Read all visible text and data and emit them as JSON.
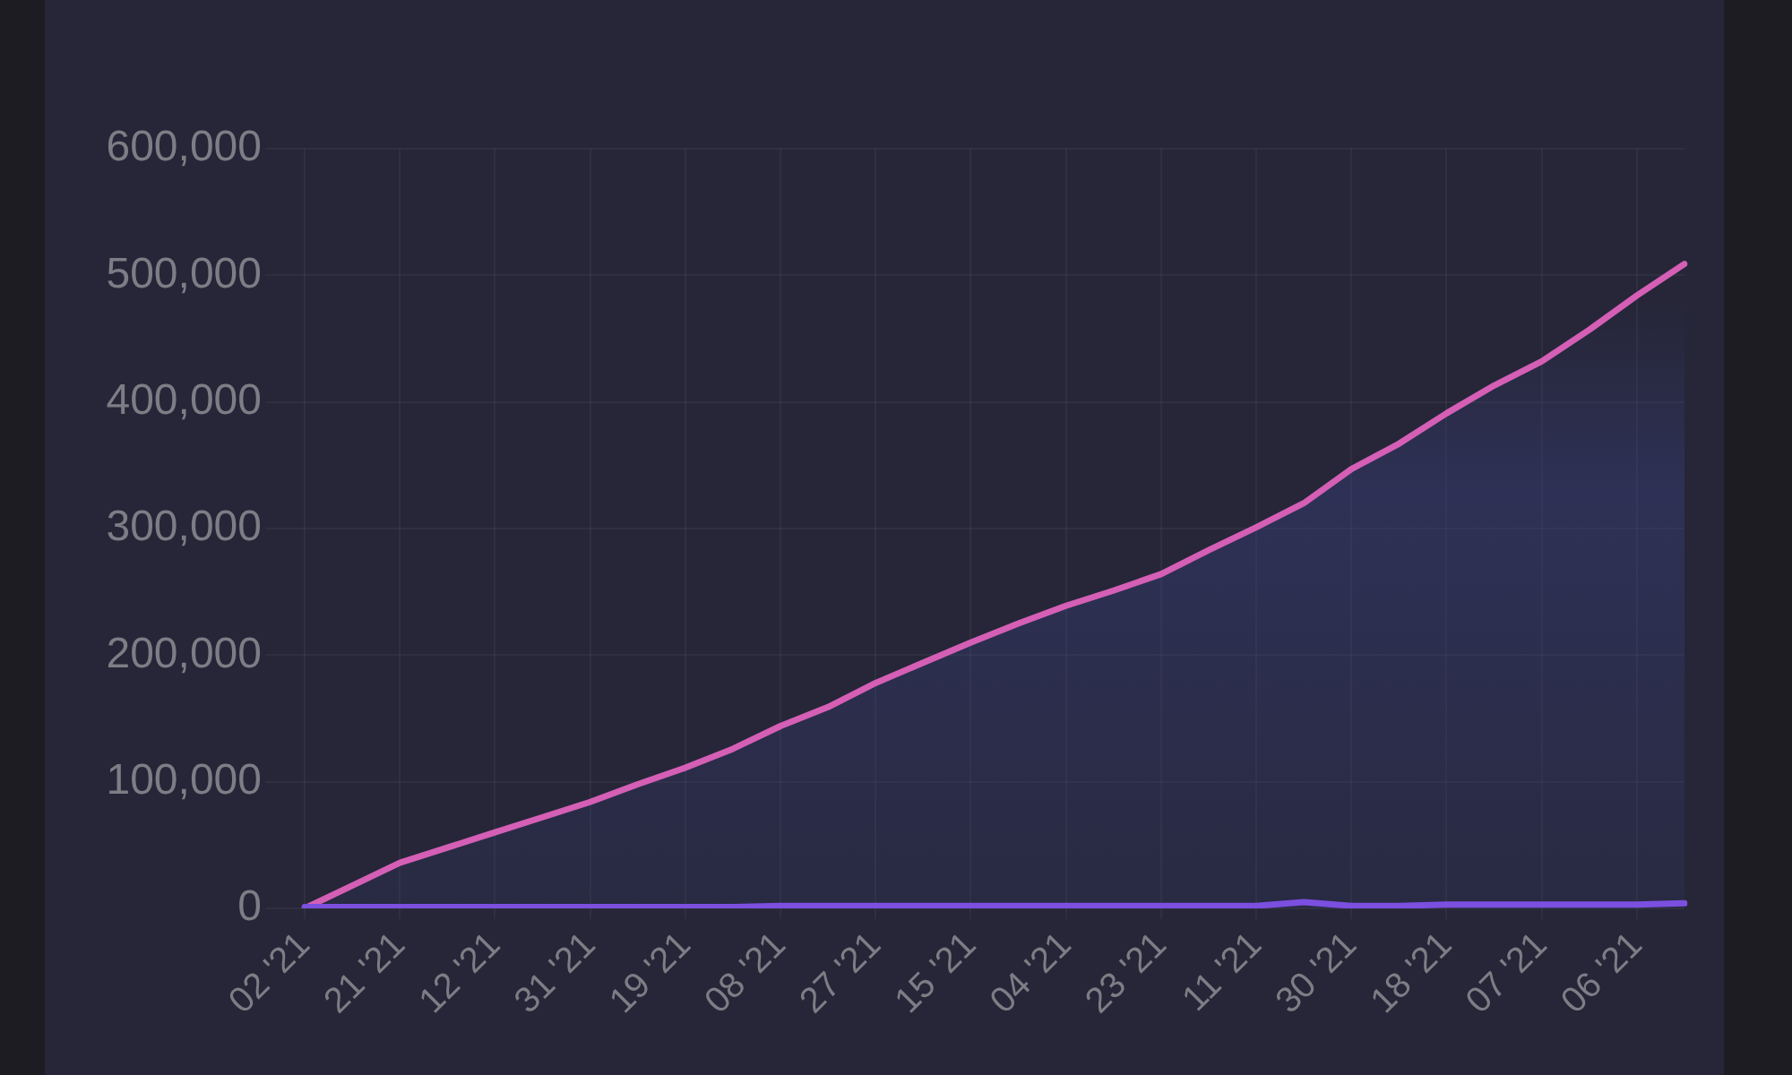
{
  "chart_data": {
    "type": "line",
    "categories": [
      "02 '21",
      null,
      "21 '21",
      null,
      "12 '21",
      null,
      "31 '21",
      null,
      "19 '21",
      null,
      "08 '21",
      null,
      "27 '21",
      null,
      "15 '21",
      null,
      "04 '21",
      null,
      "23 '21",
      null,
      "11 '21",
      null,
      "30 '21",
      null,
      "18 '21",
      null,
      "07 '21",
      null,
      "06 '21",
      null
    ],
    "ylim": [
      0,
      600000
    ],
    "yticks": [
      {
        "value": 0,
        "label": "0"
      },
      {
        "value": 100000,
        "label": "100,000"
      },
      {
        "value": 200000,
        "label": "200,000"
      },
      {
        "value": 300000,
        "label": "300,000"
      },
      {
        "value": 400000,
        "label": "400,000"
      },
      {
        "value": 500000,
        "label": "500,000"
      },
      {
        "value": 600000,
        "label": "600,000"
      }
    ],
    "grid": true,
    "series": [
      {
        "type": "area",
        "color": "#d45fb5",
        "values": [
          0,
          18000,
          36000,
          48000,
          60000,
          72000,
          84000,
          98000,
          111000,
          126000,
          144000,
          159000,
          178000,
          194000,
          210000,
          225000,
          239000,
          251000,
          264000,
          283000,
          301000,
          320000,
          347000,
          367000,
          391000,
          413000,
          432000,
          457000,
          484000,
          509000
        ]
      },
      {
        "type": "line",
        "color": "#7b4fe0",
        "values": [
          1000,
          1000,
          1000,
          1000,
          1000,
          1000,
          1000,
          1000,
          1000,
          1000,
          2000,
          2000,
          2000,
          2000,
          2000,
          2000,
          2000,
          2000,
          2000,
          2000,
          2000,
          5000,
          2000,
          2000,
          3000,
          3000,
          3000,
          3000,
          3000,
          4000
        ]
      }
    ]
  }
}
